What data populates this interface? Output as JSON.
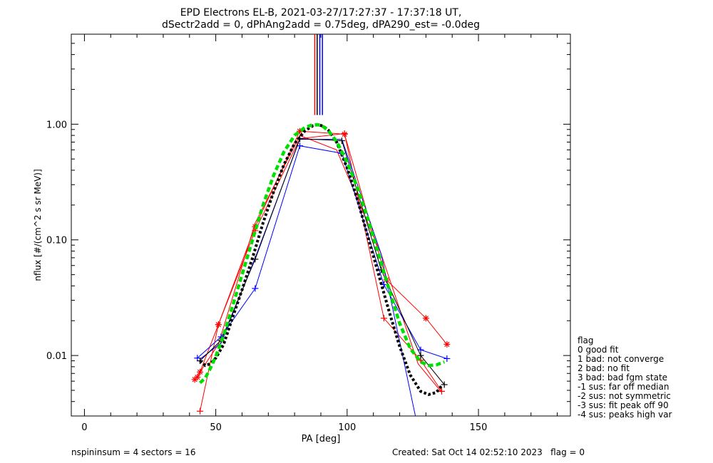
{
  "chart_data": {
    "type": "line",
    "title": "EPD Electrons EL-B, 2021-03-27/17:27:37 - 17:37:18 UT,",
    "subtitle": "dSectr2add = 0, dPhAng2add = 0.75deg, dPA290_est=  -0.0deg",
    "xlabel": "PA [deg]",
    "ylabel": "nflux [#/(cm^2 s sr MeV)]",
    "xlim": [
      -5,
      185
    ],
    "ylim": [
      0.003,
      6.0
    ],
    "yscale": "log",
    "x_ticks": [
      0,
      50,
      100,
      150
    ],
    "x_tick_labels": [
      "0",
      "50",
      "100",
      "150"
    ],
    "y_ticks": [
      0.01,
      0.1,
      1.0
    ],
    "y_tick_labels": [
      "0.01",
      "0.10",
      "1.00"
    ],
    "vertical_lines": [
      {
        "x": 87.7,
        "color": "#ff0000"
      },
      {
        "x": 88.6,
        "color": "#000000"
      },
      {
        "x": 89.6,
        "color": "#0000ff"
      },
      {
        "x": 90.6,
        "color": "#0000ff"
      }
    ],
    "series": [
      {
        "color": "#ff0000",
        "marker": "star",
        "x": [
          42,
          43,
          44,
          51,
          65,
          82,
          99,
          115,
          130,
          138
        ],
        "y": [
          0.0062,
          0.0065,
          0.0072,
          0.0185,
          0.13,
          0.87,
          0.82,
          0.045,
          0.021,
          0.0125
        ]
      },
      {
        "color": "#ff0000",
        "marker": "plus",
        "x": [
          44,
          51,
          65,
          82,
          99,
          114,
          128,
          136
        ],
        "y": [
          0.0033,
          0.0185,
          0.12,
          0.75,
          0.83,
          0.021,
          0.0091,
          0.0049
        ]
      },
      {
        "color": "#ff0000",
        "marker": "none",
        "x": [
          44,
          51,
          65,
          82,
          96,
          113,
          127,
          136
        ],
        "y": [
          0.0072,
          0.0125,
          0.14,
          0.8,
          0.6,
          0.075,
          0.0085,
          0.0048
        ]
      },
      {
        "color": "#0000ff",
        "marker": "plus",
        "x": [
          43,
          52,
          65,
          82,
          98,
          114,
          128,
          138
        ],
        "y": [
          0.0095,
          0.0145,
          0.038,
          0.65,
          0.56,
          0.041,
          0.0112,
          0.0094
        ]
      },
      {
        "color": "#0000ff",
        "marker": "none",
        "x": [
          44,
          52,
          65,
          82,
          98,
          113,
          126,
          131
        ],
        "y": [
          0.0093,
          0.0128,
          0.07,
          0.74,
          0.74,
          0.075,
          0.003,
          0.0012
        ]
      },
      {
        "color": "#000000",
        "marker": "plus",
        "x": [
          44,
          52,
          65,
          82,
          98,
          113,
          128,
          137
        ],
        "y": [
          0.009,
          0.0135,
          0.068,
          0.75,
          0.72,
          0.055,
          0.01,
          0.0056
        ]
      },
      {
        "color": "#000000",
        "marker": "none",
        "style": "dotted-fit",
        "x": [
          44,
          46,
          48,
          50,
          53,
          56,
          60,
          64,
          68,
          72,
          76,
          80,
          84,
          87,
          89,
          91,
          93,
          96,
          100,
          104,
          108,
          112,
          116,
          120,
          124,
          128,
          131,
          134,
          136
        ],
        "y": [
          0.009,
          0.0082,
          0.0085,
          0.0095,
          0.0125,
          0.02,
          0.037,
          0.07,
          0.14,
          0.26,
          0.45,
          0.68,
          0.88,
          0.97,
          0.99,
          0.96,
          0.88,
          0.7,
          0.42,
          0.22,
          0.105,
          0.05,
          0.024,
          0.012,
          0.0068,
          0.0049,
          0.0046,
          0.0048,
          0.0055
        ]
      },
      {
        "color": "#00e000",
        "marker": "none",
        "style": "dashed-fit",
        "x": [
          44,
          46,
          48,
          50,
          53,
          56,
          60,
          64,
          68,
          72,
          76,
          80,
          84,
          87,
          89,
          91,
          93,
          96,
          100,
          104,
          108,
          112,
          116,
          120,
          124,
          128,
          131,
          134,
          137
        ],
        "y": [
          0.0058,
          0.0064,
          0.0078,
          0.0098,
          0.015,
          0.025,
          0.05,
          0.1,
          0.2,
          0.36,
          0.58,
          0.8,
          0.94,
          0.99,
          0.99,
          0.95,
          0.87,
          0.71,
          0.47,
          0.28,
          0.15,
          0.075,
          0.037,
          0.019,
          0.0115,
          0.0088,
          0.0082,
          0.0083,
          0.0088
        ]
      }
    ]
  },
  "legend": {
    "title": "flag",
    "items": [
      " 0 good fit",
      " 1 bad: not converge",
      " 2 bad: no fit",
      " 3 bad: bad fgm state",
      "-1 sus: far off median",
      "-2 sus: not symmetric",
      "-3 sus: fit peak off 90",
      "-4 sus: peaks high var"
    ]
  },
  "footer": {
    "left": "nspininsum =  4  sectors = 16",
    "right": "Created: Sat Oct 14 02:52:10 2023   flag = 0"
  }
}
